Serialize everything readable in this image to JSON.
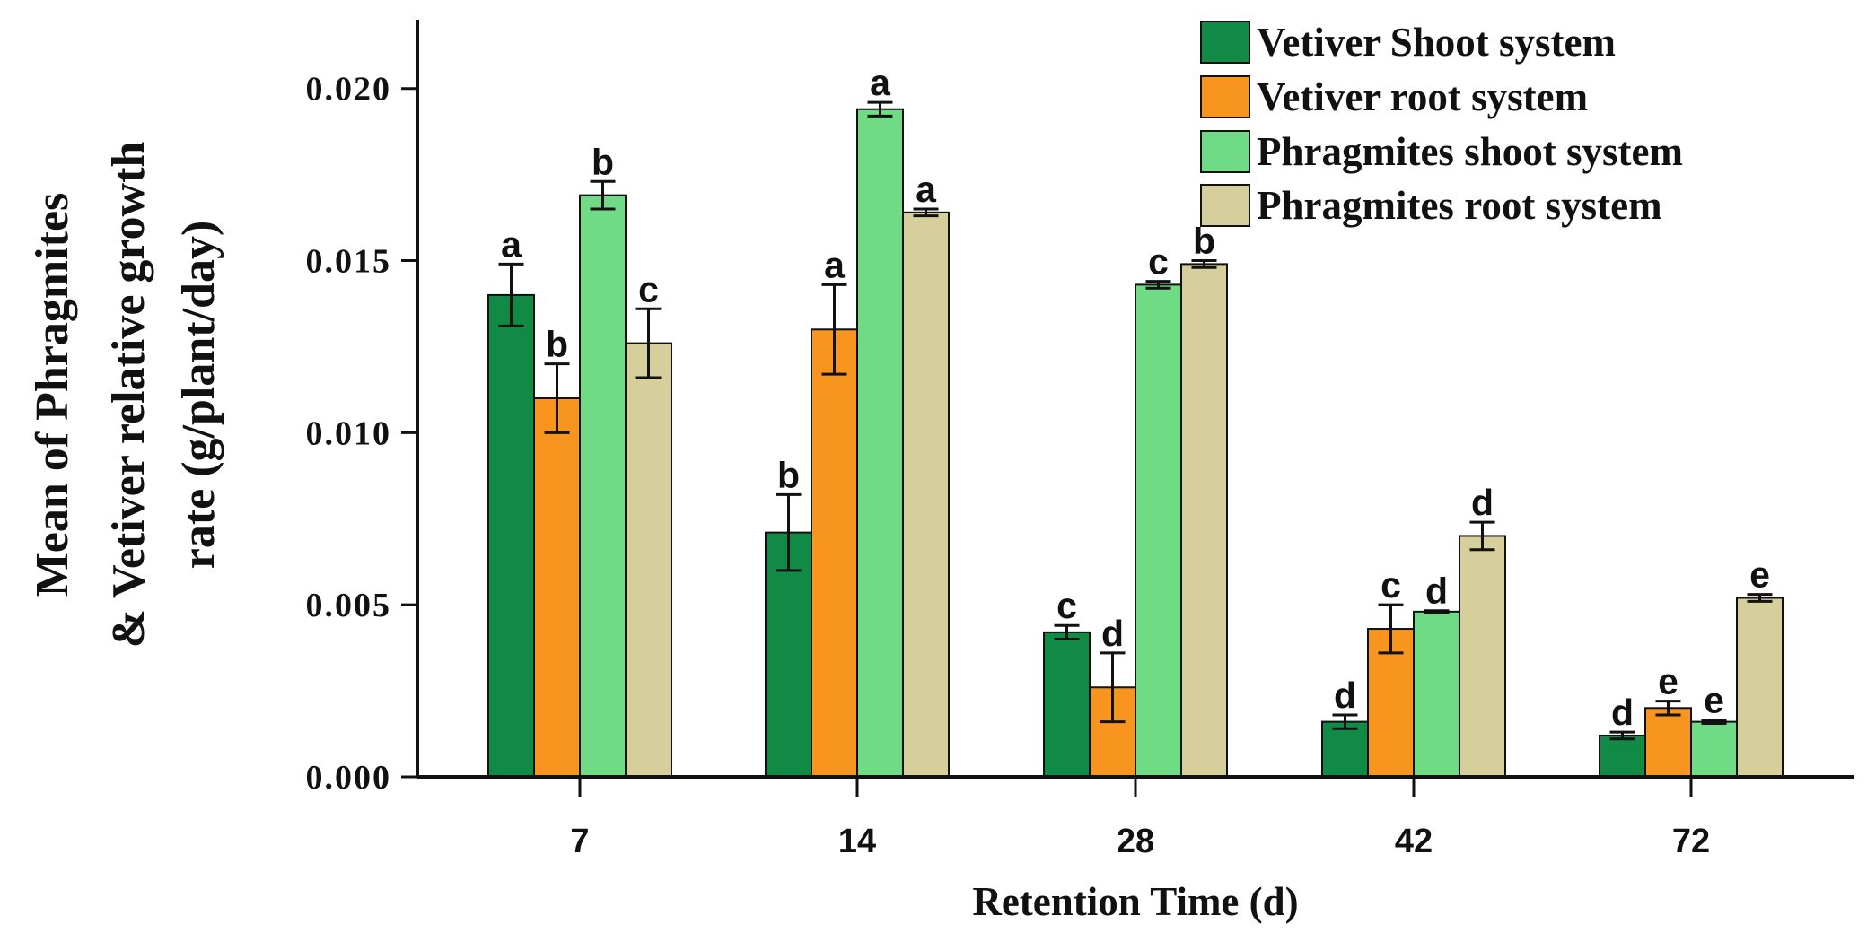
{
  "chart_data": {
    "type": "bar",
    "title": "",
    "xlabel": "Retention Time (d)",
    "ylabel_lines": [
      "Mean of Phragmites",
      "& Vetiver relative growth",
      "rate (g/plant/day)"
    ],
    "categories": [
      "7",
      "14",
      "28",
      "42",
      "72"
    ],
    "ylim": [
      0,
      0.022
    ],
    "yticks": [
      0.0,
      0.005,
      0.01,
      0.015,
      0.02
    ],
    "ytick_labels": [
      "0.000",
      "0.005",
      "0.010",
      "0.015",
      "0.020"
    ],
    "legend_position": "top-right",
    "grid": false,
    "series": [
      {
        "name": "Vetiver Shoot system",
        "color": "#118a45",
        "values": [
          0.014,
          0.0071,
          0.0042,
          0.0016,
          0.0012
        ],
        "errors": [
          0.0009,
          0.0011,
          0.0002,
          0.0002,
          0.0001
        ],
        "letters": [
          "a",
          "b",
          "c",
          "d",
          "d"
        ]
      },
      {
        "name": "Vetiver root system",
        "color": "#f7951e",
        "values": [
          0.011,
          0.013,
          0.0026,
          0.0043,
          0.002
        ],
        "errors": [
          0.001,
          0.0013,
          0.001,
          0.0007,
          0.0002
        ],
        "letters": [
          "b",
          "a",
          "d",
          "c",
          "e"
        ]
      },
      {
        "name": "Phragmites shoot system",
        "color": "#6fdb84",
        "values": [
          0.0169,
          0.0194,
          0.0143,
          0.0048,
          0.0016
        ],
        "errors": [
          0.0004,
          0.0002,
          0.0001,
          3e-05,
          5e-05
        ],
        "letters": [
          "b",
          "a",
          "c",
          "d",
          "e"
        ]
      },
      {
        "name": "Phragmites root system",
        "color": "#d6cf9c",
        "values": [
          0.0126,
          0.0164,
          0.0149,
          0.007,
          0.0052
        ],
        "errors": [
          0.001,
          0.0001,
          0.0001,
          0.0004,
          0.0001
        ],
        "letters": [
          "c",
          "a",
          "b",
          "d",
          "e"
        ]
      }
    ]
  }
}
